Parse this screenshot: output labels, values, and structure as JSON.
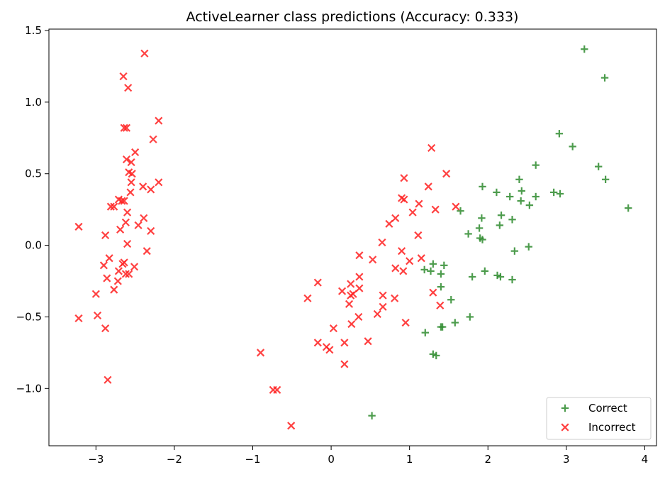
{
  "chart_data": {
    "type": "scatter",
    "title": "ActiveLearner class predictions (Accuracy: 0.333)",
    "xlabel": "",
    "ylabel": "",
    "xlim": [
      -3.6,
      4.15
    ],
    "ylim": [
      -1.4,
      1.51
    ],
    "xticks": [
      -3,
      -2,
      -1,
      0,
      1,
      2,
      3,
      4
    ],
    "xtick_labels": [
      "−3",
      "−2",
      "−1",
      "0",
      "1",
      "2",
      "3",
      "4"
    ],
    "yticks": [
      -1.0,
      -0.5,
      0.0,
      0.5,
      1.0,
      1.5
    ],
    "ytick_labels": [
      "−1.0",
      "−0.5",
      "0.0",
      "0.5",
      "1.0",
      "1.5"
    ],
    "grid": false,
    "legend_position": "bottom-right",
    "series": [
      {
        "name": "Correct",
        "marker": "plus",
        "color": "#2e8b2e",
        "points": [
          [
            3.23,
            1.37
          ],
          [
            3.49,
            1.17
          ],
          [
            2.91,
            0.78
          ],
          [
            3.08,
            0.69
          ],
          [
            3.41,
            0.55
          ],
          [
            3.5,
            0.46
          ],
          [
            3.79,
            0.26
          ],
          [
            2.61,
            0.56
          ],
          [
            2.4,
            0.46
          ],
          [
            2.43,
            0.38
          ],
          [
            2.42,
            0.31
          ],
          [
            2.28,
            0.34
          ],
          [
            2.53,
            0.28
          ],
          [
            2.61,
            0.34
          ],
          [
            2.84,
            0.37
          ],
          [
            2.92,
            0.36
          ],
          [
            1.93,
            0.41
          ],
          [
            2.11,
            0.37
          ],
          [
            1.65,
            0.24
          ],
          [
            1.92,
            0.19
          ],
          [
            2.17,
            0.21
          ],
          [
            2.31,
            0.18
          ],
          [
            2.15,
            0.14
          ],
          [
            1.75,
            0.08
          ],
          [
            1.89,
            0.12
          ],
          [
            1.9,
            0.05
          ],
          [
            1.93,
            0.04
          ],
          [
            2.52,
            -0.01
          ],
          [
            2.34,
            -0.04
          ],
          [
            1.96,
            -0.18
          ],
          [
            1.8,
            -0.22
          ],
          [
            2.12,
            -0.21
          ],
          [
            2.16,
            -0.22
          ],
          [
            2.31,
            -0.24
          ],
          [
            1.3,
            -0.13
          ],
          [
            1.44,
            -0.14
          ],
          [
            1.19,
            -0.17
          ],
          [
            1.27,
            -0.18
          ],
          [
            1.4,
            -0.2
          ],
          [
            1.4,
            -0.29
          ],
          [
            1.53,
            -0.38
          ],
          [
            1.77,
            -0.5
          ],
          [
            1.58,
            -0.54
          ],
          [
            1.4,
            -0.57
          ],
          [
            1.42,
            -0.57
          ],
          [
            1.2,
            -0.61
          ],
          [
            1.3,
            -0.76
          ],
          [
            1.34,
            -0.77
          ],
          [
            0.52,
            -1.19
          ]
        ]
      },
      {
        "name": "Incorrect",
        "marker": "x",
        "color": "#ff2020",
        "points": [
          [
            -2.38,
            1.34
          ],
          [
            -2.65,
            1.18
          ],
          [
            -2.59,
            1.1
          ],
          [
            -2.2,
            0.87
          ],
          [
            -2.64,
            0.82
          ],
          [
            -2.61,
            0.82
          ],
          [
            -2.27,
            0.74
          ],
          [
            -2.5,
            0.65
          ],
          [
            -2.61,
            0.6
          ],
          [
            -2.55,
            0.58
          ],
          [
            -2.58,
            0.51
          ],
          [
            -2.54,
            0.5
          ],
          [
            -2.55,
            0.44
          ],
          [
            -2.2,
            0.44
          ],
          [
            -2.4,
            0.41
          ],
          [
            -2.3,
            0.39
          ],
          [
            -2.56,
            0.37
          ],
          [
            -2.71,
            0.32
          ],
          [
            -2.67,
            0.31
          ],
          [
            -2.64,
            0.31
          ],
          [
            -2.6,
            0.23
          ],
          [
            -2.39,
            0.19
          ],
          [
            -2.62,
            0.16
          ],
          [
            -2.46,
            0.14
          ],
          [
            -2.69,
            0.11
          ],
          [
            -2.3,
            0.1
          ],
          [
            -2.81,
            0.27
          ],
          [
            -2.77,
            0.27
          ],
          [
            -2.88,
            0.07
          ],
          [
            -3.22,
            0.13
          ],
          [
            -2.6,
            0.01
          ],
          [
            -2.35,
            -0.04
          ],
          [
            -2.83,
            -0.09
          ],
          [
            -2.64,
            -0.12
          ],
          [
            -2.66,
            -0.13
          ],
          [
            -2.9,
            -0.14
          ],
          [
            -2.51,
            -0.15
          ],
          [
            -2.71,
            -0.18
          ],
          [
            -2.62,
            -0.2
          ],
          [
            -2.58,
            -0.2
          ],
          [
            -2.86,
            -0.23
          ],
          [
            -2.72,
            -0.25
          ],
          [
            -2.77,
            -0.31
          ],
          [
            -3.0,
            -0.34
          ],
          [
            -2.98,
            -0.49
          ],
          [
            -3.22,
            -0.51
          ],
          [
            -2.88,
            -0.58
          ],
          [
            -2.85,
            -0.94
          ],
          [
            1.28,
            0.68
          ],
          [
            1.47,
            0.5
          ],
          [
            0.93,
            0.47
          ],
          [
            1.24,
            0.41
          ],
          [
            0.9,
            0.33
          ],
          [
            0.93,
            0.32
          ],
          [
            1.12,
            0.29
          ],
          [
            1.59,
            0.27
          ],
          [
            1.33,
            0.25
          ],
          [
            1.04,
            0.23
          ],
          [
            0.82,
            0.19
          ],
          [
            0.74,
            0.15
          ],
          [
            1.11,
            0.07
          ],
          [
            0.65,
            0.02
          ],
          [
            0.9,
            -0.04
          ],
          [
            0.36,
            -0.07
          ],
          [
            0.53,
            -0.1
          ],
          [
            1.0,
            -0.11
          ],
          [
            1.15,
            -0.09
          ],
          [
            0.82,
            -0.16
          ],
          [
            0.92,
            -0.18
          ],
          [
            0.36,
            -0.22
          ],
          [
            -0.17,
            -0.26
          ],
          [
            0.25,
            -0.27
          ],
          [
            0.36,
            -0.3
          ],
          [
            0.14,
            -0.32
          ],
          [
            0.28,
            -0.34
          ],
          [
            0.25,
            -0.35
          ],
          [
            0.66,
            -0.35
          ],
          [
            1.3,
            -0.33
          ],
          [
            -0.3,
            -0.37
          ],
          [
            0.81,
            -0.37
          ],
          [
            0.23,
            -0.41
          ],
          [
            0.66,
            -0.43
          ],
          [
            1.39,
            -0.42
          ],
          [
            0.35,
            -0.5
          ],
          [
            0.59,
            -0.48
          ],
          [
            0.26,
            -0.55
          ],
          [
            0.95,
            -0.54
          ],
          [
            0.03,
            -0.58
          ],
          [
            0.47,
            -0.67
          ],
          [
            -0.17,
            -0.68
          ],
          [
            0.17,
            -0.68
          ],
          [
            -0.06,
            -0.71
          ],
          [
            -0.02,
            -0.73
          ],
          [
            0.17,
            -0.83
          ],
          [
            -0.9,
            -0.75
          ],
          [
            -0.74,
            -1.01
          ],
          [
            -0.69,
            -1.01
          ],
          [
            -0.51,
            -1.26
          ]
        ]
      }
    ]
  }
}
